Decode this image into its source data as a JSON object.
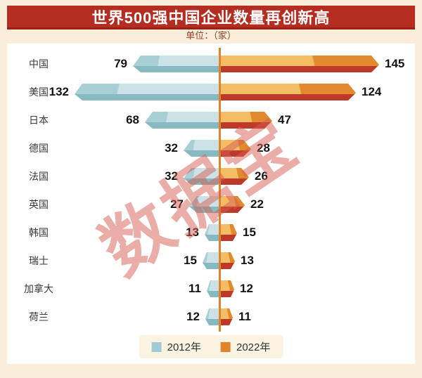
{
  "chart_data": {
    "type": "bar",
    "variant": "diverging-horizontal-tornado",
    "title": "世界500强中国企业数量再创新高",
    "unit_label": "单位：（家）",
    "watermark": "数据宝",
    "categories": [
      "中国",
      "美国",
      "日本",
      "德国",
      "法国",
      "英国",
      "韩国",
      "瑞士",
      "加拿大",
      "荷兰"
    ],
    "series": [
      {
        "name": "2012年",
        "side": "left",
        "color": "#9fcbd4",
        "values": [
          79,
          132,
          68,
          32,
          32,
          27,
          13,
          15,
          11,
          12
        ]
      },
      {
        "name": "2022年",
        "side": "right",
        "color": "#e0832a",
        "values": [
          145,
          124,
          47,
          28,
          26,
          22,
          15,
          13,
          12,
          11
        ]
      }
    ],
    "legend_position": "bottom-center",
    "grid": false,
    "axis": {
      "center_line_color": "#e0832a"
    },
    "colors": {
      "page_background": "#faeeda",
      "panel_background": "#ffffff",
      "banner_background": "#b52c20",
      "banner_text": "#ffffff",
      "unit_text": "#9b3c2e",
      "value_text": "#141414",
      "category_text": "#3a3a3a",
      "bar_2012_top": "#cde2e6",
      "bar_2012_top_shade": "#a9cfd6",
      "bar_2012_bottom": "#87b9c1",
      "bar_2022_top": "#f3bd64",
      "bar_2022_top_shade": "#e1892c",
      "bar_2022_bottom": "#bf392a",
      "watermark_text": "#d65c51"
    }
  }
}
